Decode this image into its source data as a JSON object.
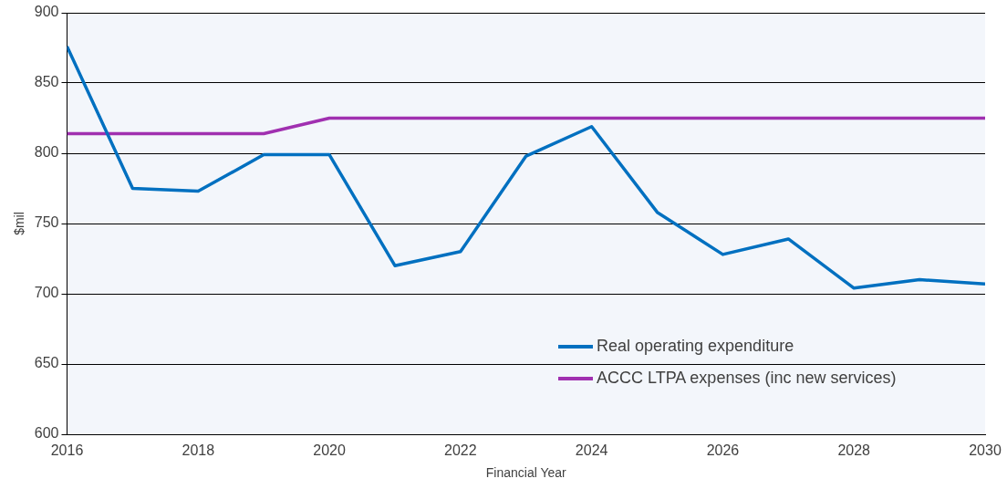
{
  "chart_data": {
    "type": "line",
    "xlabel": "Financial Year",
    "ylabel": "$mil",
    "x": [
      2016,
      2017,
      2018,
      2019,
      2020,
      2021,
      2022,
      2023,
      2024,
      2025,
      2026,
      2027,
      2028,
      2029,
      2030
    ],
    "series": [
      {
        "name": "Real operating expenditure",
        "color": "#0070c0",
        "values": [
          876,
          775,
          773,
          799,
          799,
          720,
          730,
          798,
          819,
          758,
          728,
          739,
          704,
          710,
          707
        ]
      },
      {
        "name": "ACCC LTPA expenses (inc new services)",
        "color": "#a030b0",
        "values": [
          814,
          814,
          814,
          814,
          825,
          825,
          825,
          825,
          825,
          825,
          825,
          825,
          825,
          825,
          825
        ]
      }
    ],
    "xlim": [
      2016,
      2030
    ],
    "xticks": [
      2016,
      2018,
      2020,
      2022,
      2024,
      2026,
      2028,
      2030
    ],
    "ylim": [
      600,
      900
    ],
    "yticks": [
      600,
      650,
      700,
      750,
      800,
      850,
      900
    ],
    "grid": "y",
    "legend": "bottom right",
    "marker": "none",
    "line_style": "solid"
  }
}
